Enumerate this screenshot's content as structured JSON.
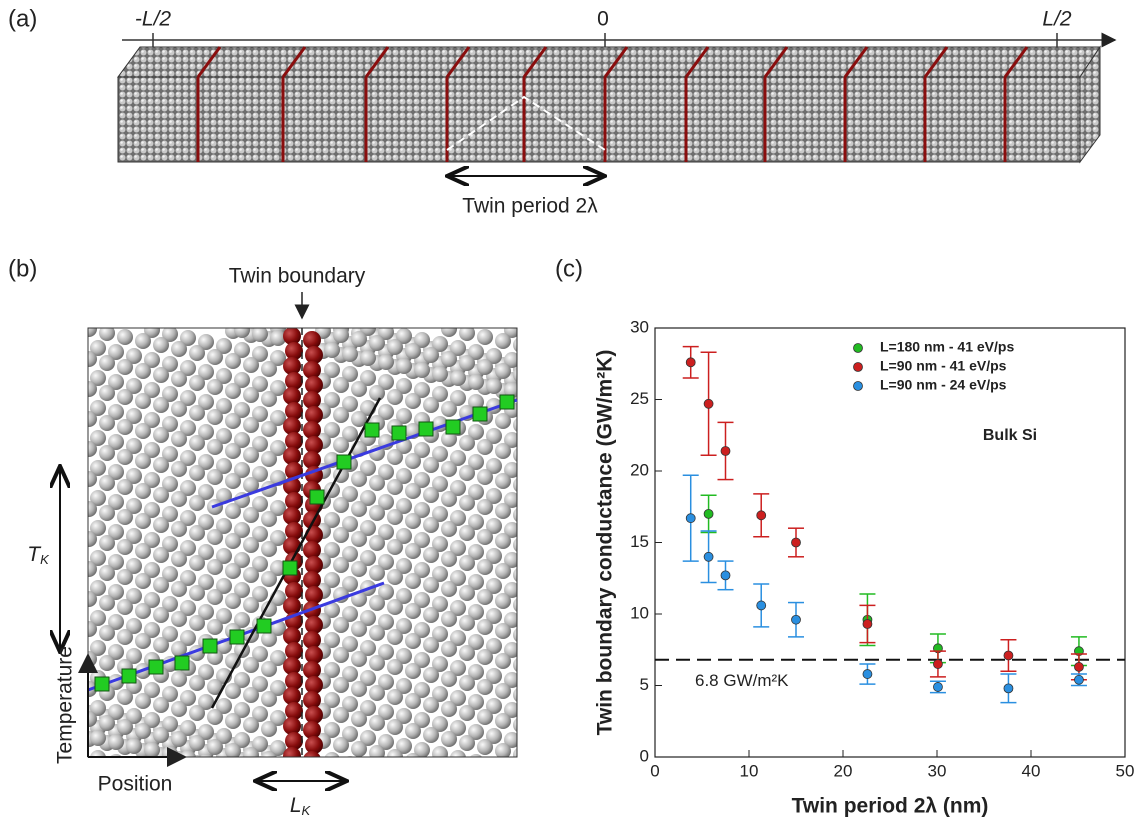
{
  "panel_a": {
    "label": "(a)",
    "axis_labels": [
      "-L/2",
      "0",
      "L/2"
    ],
    "period_label": "Twin period 2λ"
  },
  "panel_b": {
    "label": "(b)",
    "boundary_label": "Twin boundary",
    "temperature_jump": {
      "symbol": "T",
      "subscript": "K"
    },
    "length_jump": {
      "symbol": "L",
      "subscript": "K"
    },
    "y_axis_label": "Temperature",
    "x_axis_label": "Position"
  },
  "chart_data": {
    "type": "scatter",
    "panel_label": "(c)",
    "x_label": "Twin period 2λ (nm)",
    "y_label": "Twin boundary conductance  (GW/m²K)",
    "xlim": [
      0,
      50
    ],
    "xticks": [
      0,
      10,
      20,
      30,
      40,
      50
    ],
    "ylim": [
      0,
      30
    ],
    "yticks": [
      0,
      5,
      10,
      15,
      20,
      25,
      30
    ],
    "annotation": "Bulk Si",
    "hline": {
      "value": 6.8,
      "label": "6.8 GW/m²K"
    },
    "legend": "top-right",
    "series": [
      {
        "name": "L=180 nm - 41 eV/ps",
        "color": "#22bb22",
        "x": [
          5.7,
          22.6,
          30.1,
          45.1
        ],
        "values": [
          17.0,
          9.6,
          7.6,
          7.4
        ],
        "errors": [
          1.3,
          1.8,
          1.0,
          1.0
        ]
      },
      {
        "name": "L=90 nm - 41 eV/ps",
        "color": "#cc1f1f",
        "x": [
          3.8,
          5.7,
          7.5,
          11.3,
          15.0,
          22.6,
          30.1,
          37.6,
          45.1
        ],
        "values": [
          27.6,
          24.7,
          21.4,
          16.9,
          15.0,
          9.3,
          6.5,
          7.1,
          6.3
        ],
        "errors": [
          1.1,
          3.6,
          2.0,
          1.5,
          1.0,
          1.3,
          0.9,
          1.1,
          0.9
        ]
      },
      {
        "name": "L=90 nm - 24 eV/ps",
        "color": "#2a8fe0",
        "x": [
          3.8,
          5.7,
          7.5,
          11.3,
          15.0,
          22.6,
          30.1,
          37.6,
          45.1
        ],
        "values": [
          16.7,
          14.0,
          12.7,
          10.6,
          9.6,
          5.8,
          4.9,
          4.8,
          5.4
        ],
        "errors": [
          3.0,
          1.8,
          1.0,
          1.5,
          1.2,
          0.7,
          0.4,
          1.0,
          0.4
        ]
      }
    ]
  }
}
